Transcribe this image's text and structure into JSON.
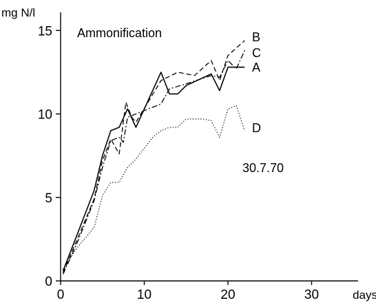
{
  "chart_data": {
    "type": "line",
    "ylabel": "mg N/l",
    "xlabel": "days",
    "xlim": [
      0,
      37
    ],
    "ylim": [
      0,
      16
    ],
    "x_ticks": [
      0,
      10,
      20,
      30
    ],
    "y_ticks": [
      0,
      5,
      10,
      15
    ],
    "grid": false,
    "legend": "none",
    "annotations": {
      "title_text": "Ammonification",
      "date_text": "30.7.70"
    },
    "series": [
      {
        "name": "A",
        "style": "solid",
        "points": [
          [
            0.3,
            0.6
          ],
          [
            2,
            2.8
          ],
          [
            4,
            5.4
          ],
          [
            5,
            7.5
          ],
          [
            6,
            9.0
          ],
          [
            7,
            9.2
          ],
          [
            8,
            10.3
          ],
          [
            9,
            9.2
          ],
          [
            12,
            12.5
          ],
          [
            13,
            11.2
          ],
          [
            14,
            11.2
          ],
          [
            15,
            11.7
          ],
          [
            18,
            12.4
          ],
          [
            19,
            11.4
          ],
          [
            20,
            12.8
          ],
          [
            22,
            12.8
          ]
        ]
      },
      {
        "name": "B",
        "style": "dashed",
        "points": [
          [
            0.3,
            0.5
          ],
          [
            2,
            2.5
          ],
          [
            4,
            4.9
          ],
          [
            5,
            7.2
          ],
          [
            6,
            8.5
          ],
          [
            7,
            7.6
          ],
          [
            7.8,
            10.7
          ],
          [
            8.5,
            9.8
          ],
          [
            9,
            9.5
          ],
          [
            12,
            12.0
          ],
          [
            14,
            12.5
          ],
          [
            16,
            12.3
          ],
          [
            18,
            13.2
          ],
          [
            19,
            12.0
          ],
          [
            20,
            13.5
          ],
          [
            22,
            14.4
          ]
        ]
      },
      {
        "name": "C",
        "style": "dashdot",
        "points": [
          [
            0.3,
            0.4
          ],
          [
            2,
            2.3
          ],
          [
            4,
            4.8
          ],
          [
            5,
            6.8
          ],
          [
            6,
            8.4
          ],
          [
            7,
            8.6
          ],
          [
            7.5,
            8.3
          ],
          [
            8,
            9.8
          ],
          [
            10,
            10.2
          ],
          [
            12,
            10.6
          ],
          [
            13,
            11.5
          ],
          [
            15,
            11.8
          ],
          [
            18,
            12.3
          ],
          [
            19,
            12.2
          ],
          [
            20,
            13.2
          ],
          [
            21,
            12.7
          ],
          [
            22,
            13.8
          ]
        ]
      },
      {
        "name": "D",
        "style": "dotted",
        "points": [
          [
            0.3,
            0.7
          ],
          [
            2,
            2.0
          ],
          [
            4,
            3.2
          ],
          [
            5,
            5.1
          ],
          [
            6,
            5.9
          ],
          [
            7,
            5.9
          ],
          [
            8,
            6.8
          ],
          [
            9,
            7.3
          ],
          [
            11,
            8.6
          ],
          [
            12,
            9.0
          ],
          [
            13,
            9.2
          ],
          [
            14,
            9.2
          ],
          [
            15,
            9.7
          ],
          [
            16,
            9.7
          ],
          [
            17,
            9.7
          ],
          [
            18,
            9.6
          ],
          [
            19,
            8.6
          ],
          [
            20,
            10.3
          ],
          [
            21,
            10.5
          ],
          [
            22,
            9.0
          ]
        ]
      }
    ]
  }
}
